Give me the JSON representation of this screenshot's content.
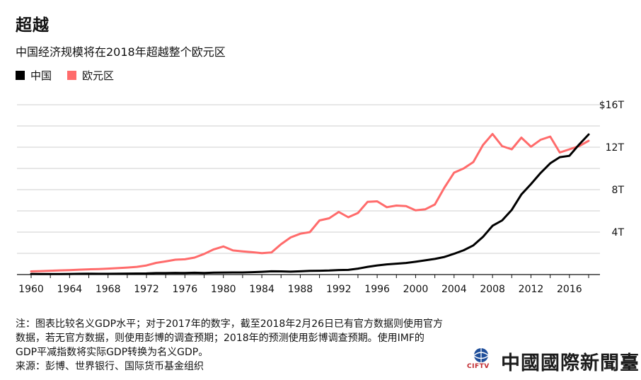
{
  "header": {
    "title": "超越",
    "subtitle": "中国经济规模将在2018年超越整个欧元区"
  },
  "legend": [
    {
      "label": "中国",
      "color": "#000000"
    },
    {
      "label": "欧元区",
      "color": "#ff6b6b"
    }
  ],
  "chart_data": {
    "type": "line",
    "title": "超越",
    "subtitle": "中国经济规模将在2018年超越整个欧元区",
    "xlabel": "",
    "ylabel": "",
    "xlim": [
      1960,
      2018
    ],
    "ylim": [
      0,
      16
    ],
    "x_ticks": [
      "1960",
      "1964",
      "1968",
      "1972",
      "1976",
      "1980",
      "1984",
      "1988",
      "1992",
      "1996",
      "2000",
      "2004",
      "2008",
      "2012",
      "2016"
    ],
    "y_ticks": [
      "4T",
      "8T",
      "12T",
      "$16T"
    ],
    "grid": "horizontal",
    "legend_position": "top-left",
    "x": [
      1960,
      1961,
      1962,
      1963,
      1964,
      1965,
      1966,
      1967,
      1968,
      1969,
      1970,
      1971,
      1972,
      1973,
      1974,
      1975,
      1976,
      1977,
      1978,
      1979,
      1980,
      1981,
      1982,
      1983,
      1984,
      1985,
      1986,
      1987,
      1988,
      1989,
      1990,
      1991,
      1992,
      1993,
      1994,
      1995,
      1996,
      1997,
      1998,
      1999,
      2000,
      2001,
      2002,
      2003,
      2004,
      2005,
      2006,
      2007,
      2008,
      2009,
      2010,
      2011,
      2012,
      2013,
      2014,
      2015,
      2016,
      2017,
      2018
    ],
    "series": [
      {
        "name": "中国",
        "color": "#000000",
        "values": [
          0.06,
          0.05,
          0.05,
          0.05,
          0.06,
          0.07,
          0.08,
          0.07,
          0.07,
          0.08,
          0.09,
          0.1,
          0.11,
          0.14,
          0.14,
          0.16,
          0.15,
          0.17,
          0.15,
          0.18,
          0.19,
          0.2,
          0.2,
          0.23,
          0.26,
          0.31,
          0.3,
          0.27,
          0.31,
          0.35,
          0.36,
          0.38,
          0.43,
          0.44,
          0.56,
          0.73,
          0.86,
          0.96,
          1.03,
          1.09,
          1.21,
          1.34,
          1.47,
          1.66,
          1.96,
          2.29,
          2.75,
          3.55,
          4.59,
          5.1,
          6.09,
          7.55,
          8.53,
          9.57,
          10.48,
          11.06,
          11.19,
          12.24,
          13.2
        ]
      },
      {
        "name": "欧元区",
        "color": "#ff6b6b",
        "values": [
          0.3,
          0.33,
          0.36,
          0.39,
          0.42,
          0.46,
          0.49,
          0.52,
          0.56,
          0.61,
          0.66,
          0.73,
          0.86,
          1.1,
          1.24,
          1.4,
          1.44,
          1.6,
          1.95,
          2.37,
          2.65,
          2.27,
          2.18,
          2.11,
          2.02,
          2.08,
          2.86,
          3.5,
          3.85,
          4.0,
          5.1,
          5.3,
          5.9,
          5.4,
          5.8,
          6.85,
          6.9,
          6.35,
          6.5,
          6.45,
          6.05,
          6.15,
          6.6,
          8.2,
          9.6,
          10.0,
          10.6,
          12.2,
          13.25,
          12.1,
          11.8,
          12.9,
          12.05,
          12.7,
          13.0,
          11.5,
          11.8,
          12.1,
          12.6
        ]
      }
    ]
  },
  "notes": {
    "line1": "注：图表比较名义GDP水平；对于2017年的数字，截至2018年2月26日已有官方数据则使用官方",
    "line2": "数据，若无官方数据，则使用彭博的调查预期；2018年的预测使用彭博调查预期。使用IMF的",
    "line3": "GDP平减指数将实际GDP转换为名义GDP。",
    "line4": "来源：彭博、世界银行、国际货币基金组织"
  },
  "logo": {
    "text": "中國國際新聞臺",
    "sub": "CIFTV"
  }
}
